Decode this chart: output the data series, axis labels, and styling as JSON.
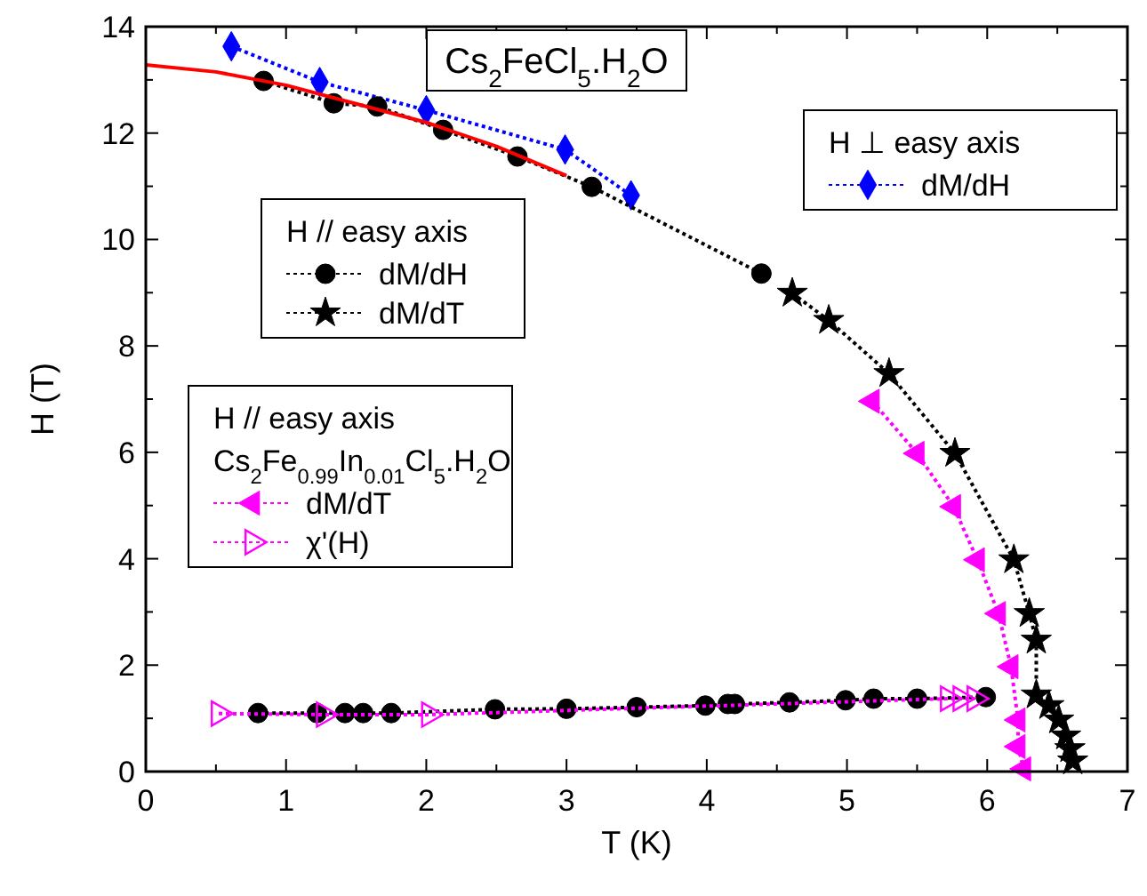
{
  "chart_data": {
    "type": "line",
    "title": "Cs$_{2}$FeCl$_{5}$.H$_{2}$O",
    "xlabel": "T (K)",
    "ylabel": "H (T)",
    "xlim": [
      0,
      7
    ],
    "ylim": [
      0,
      14
    ],
    "xticks": [
      0,
      {
        "value": 0.5,
        "label": null
      },
      1,
      {
        "value": 1.5,
        "label": null
      },
      2,
      {
        "value": 2.5,
        "label": null
      },
      3,
      {
        "value": 3.5,
        "label": null
      },
      4,
      {
        "value": 4.5,
        "label": null
      },
      5,
      {
        "value": 5.5,
        "label": null
      },
      6,
      {
        "value": 6.5,
        "label": null
      },
      7
    ],
    "yticks": [
      0,
      {
        "value": 1,
        "label": null
      },
      2,
      {
        "value": 3,
        "label": null
      },
      4,
      {
        "value": 5,
        "label": null
      },
      6,
      {
        "value": 7,
        "label": null
      },
      8,
      {
        "value": 9,
        "label": null
      },
      10,
      {
        "value": 11,
        "label": null
      },
      12,
      {
        "value": 13,
        "label": null
      },
      14
    ],
    "grid": false,
    "legend": "top right",
    "annotations": [
      "H ⊥ easy axis",
      "H // easy axis",
      "H // easy axis",
      "Cs$_{2}$Fe$_{0.99}$In$_{0.01}$Cl$_{5}$.H$_{2}$O"
    ],
    "series": [
      {
        "name": "dM/dH",
        "color": "#0000ff",
        "marker": "diamond",
        "line_style": "dotted",
        "x": [
          0.61,
          1.24,
          2.0,
          2.99,
          3.46
        ],
        "values": [
          13.63,
          12.96,
          12.43,
          11.69,
          10.83
        ]
      },
      {
        "name": "dM/dH",
        "color": "#000000",
        "marker": "circle",
        "line_style": "dotted",
        "x": [
          0.84,
          1.34,
          1.65,
          2.12,
          2.65,
          3.18,
          4.39
        ],
        "values": [
          12.98,
          12.56,
          12.5,
          12.06,
          11.56,
          10.99,
          9.36
        ]
      },
      {
        "name": "dM/dT",
        "color": "#000000",
        "marker": "star",
        "line_style": "dotted",
        "x": [
          4.61,
          4.87,
          5.3,
          5.77,
          6.19,
          6.3,
          6.35,
          6.35,
          6.44,
          6.51,
          6.56,
          6.59,
          6.61
        ],
        "values": [
          8.99,
          8.48,
          7.48,
          5.98,
          3.98,
          2.97,
          2.47,
          1.44,
          1.24,
          0.97,
          0.67,
          0.43,
          0.2
        ]
      },
      {
        "color": "#000000",
        "marker": "circle",
        "line_style": "dotted",
        "x": [
          0.8,
          1.22,
          1.42,
          1.55,
          1.75,
          2.49,
          3.0,
          3.5,
          3.99,
          4.15,
          4.2,
          4.59,
          4.99,
          5.19,
          5.5,
          5.99
        ],
        "values": [
          1.1,
          1.1,
          1.1,
          1.1,
          1.1,
          1.17,
          1.18,
          1.21,
          1.24,
          1.27,
          1.27,
          1.3,
          1.34,
          1.37,
          1.37,
          1.4
        ]
      },
      {
        "name": "dM/dT",
        "color": "#ff00ff",
        "marker": "triangle",
        "line_style": "dotted",
        "x": [
          5.18,
          5.5,
          5.76,
          5.93,
          6.08,
          6.17,
          6.22,
          6.22,
          6.26
        ],
        "values": [
          6.96,
          5.98,
          4.98,
          3.98,
          2.97,
          1.97,
          0.97,
          0.47,
          0.05
        ]
      },
      {
        "name": "χ'(H)",
        "color": "#ff00ff",
        "marker": "triangle",
        "line_style": "dotted",
        "x": [
          0.52,
          1.27,
          2.02,
          5.72,
          5.81,
          5.91
        ],
        "values": [
          1.09,
          1.07,
          1.07,
          1.37,
          1.37,
          1.37
        ]
      },
      {
        "type": "line",
        "color": "#ff0000",
        "marker": "none",
        "line_style": "solid",
        "x": [
          0,
          0.5,
          1,
          1.5,
          2,
          2.5,
          3
        ],
        "values": [
          13.28,
          13.15,
          12.9,
          12.55,
          12.2,
          11.75,
          11.2
        ]
      }
    ]
  }
}
